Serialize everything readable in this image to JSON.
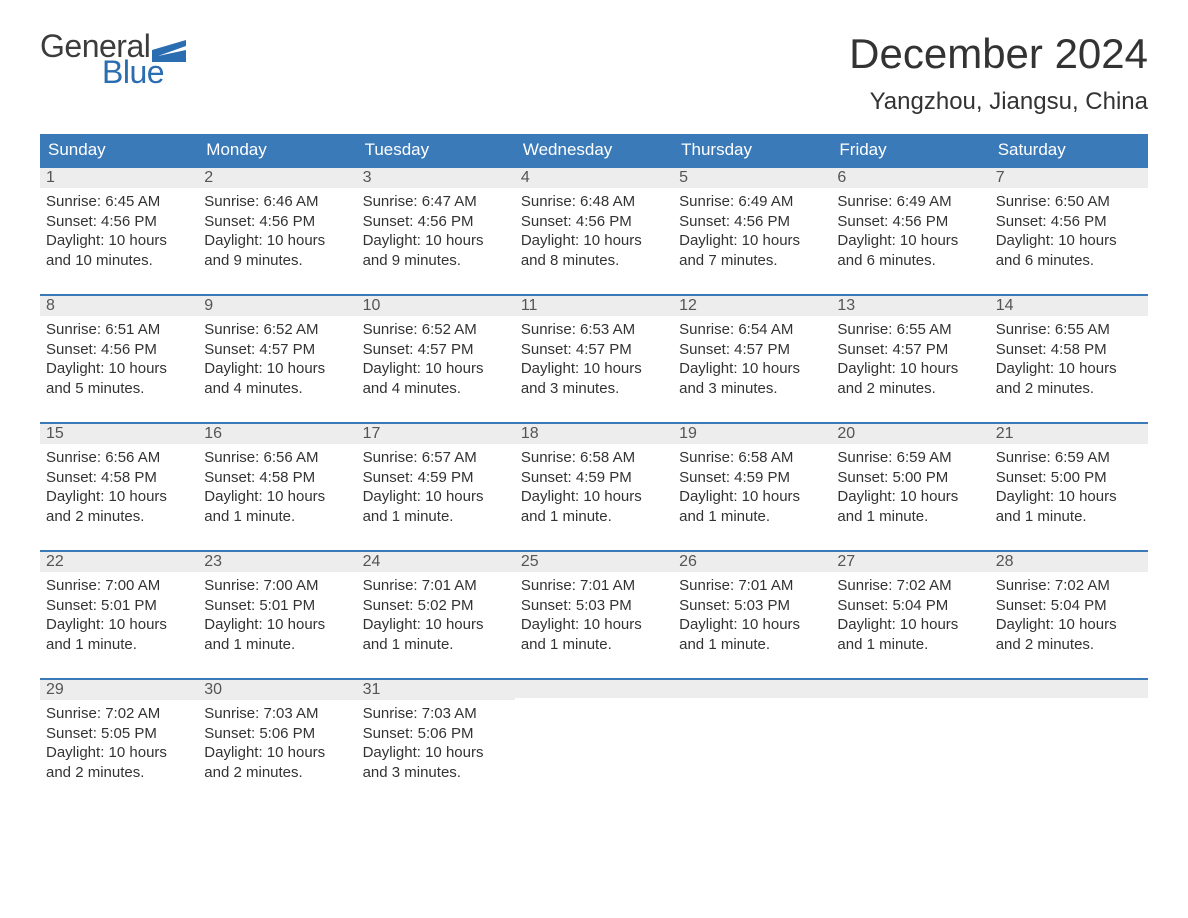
{
  "logo": {
    "word1": "General",
    "word2": "Blue",
    "flag_color": "#2a6db0",
    "text_dark": "#3c3c3c"
  },
  "header": {
    "month_title": "December 2024",
    "location": "Yangzhou, Jiangsu, China"
  },
  "styling": {
    "header_bg": "#3a7ab8",
    "header_text": "#ffffff",
    "daynum_bg": "#ededed",
    "row_divider": "#3a7ab8",
    "body_text": "#333333",
    "font_family": "Arial, Helvetica, sans-serif",
    "month_title_fontsize": 42,
    "location_fontsize": 24,
    "weekday_fontsize": 17,
    "daynum_fontsize": 16,
    "body_fontsize": 15
  },
  "weekdays": [
    "Sunday",
    "Monday",
    "Tuesday",
    "Wednesday",
    "Thursday",
    "Friday",
    "Saturday"
  ],
  "labels": {
    "sunrise": "Sunrise:",
    "sunset": "Sunset:",
    "daylight": "Daylight:"
  },
  "days": [
    {
      "n": "1",
      "sunrise": "6:45 AM",
      "sunset": "4:56 PM",
      "daylight": "10 hours and 10 minutes."
    },
    {
      "n": "2",
      "sunrise": "6:46 AM",
      "sunset": "4:56 PM",
      "daylight": "10 hours and 9 minutes."
    },
    {
      "n": "3",
      "sunrise": "6:47 AM",
      "sunset": "4:56 PM",
      "daylight": "10 hours and 9 minutes."
    },
    {
      "n": "4",
      "sunrise": "6:48 AM",
      "sunset": "4:56 PM",
      "daylight": "10 hours and 8 minutes."
    },
    {
      "n": "5",
      "sunrise": "6:49 AM",
      "sunset": "4:56 PM",
      "daylight": "10 hours and 7 minutes."
    },
    {
      "n": "6",
      "sunrise": "6:49 AM",
      "sunset": "4:56 PM",
      "daylight": "10 hours and 6 minutes."
    },
    {
      "n": "7",
      "sunrise": "6:50 AM",
      "sunset": "4:56 PM",
      "daylight": "10 hours and 6 minutes."
    },
    {
      "n": "8",
      "sunrise": "6:51 AM",
      "sunset": "4:56 PM",
      "daylight": "10 hours and 5 minutes."
    },
    {
      "n": "9",
      "sunrise": "6:52 AM",
      "sunset": "4:57 PM",
      "daylight": "10 hours and 4 minutes."
    },
    {
      "n": "10",
      "sunrise": "6:52 AM",
      "sunset": "4:57 PM",
      "daylight": "10 hours and 4 minutes."
    },
    {
      "n": "11",
      "sunrise": "6:53 AM",
      "sunset": "4:57 PM",
      "daylight": "10 hours and 3 minutes."
    },
    {
      "n": "12",
      "sunrise": "6:54 AM",
      "sunset": "4:57 PM",
      "daylight": "10 hours and 3 minutes."
    },
    {
      "n": "13",
      "sunrise": "6:55 AM",
      "sunset": "4:57 PM",
      "daylight": "10 hours and 2 minutes."
    },
    {
      "n": "14",
      "sunrise": "6:55 AM",
      "sunset": "4:58 PM",
      "daylight": "10 hours and 2 minutes."
    },
    {
      "n": "15",
      "sunrise": "6:56 AM",
      "sunset": "4:58 PM",
      "daylight": "10 hours and 2 minutes."
    },
    {
      "n": "16",
      "sunrise": "6:56 AM",
      "sunset": "4:58 PM",
      "daylight": "10 hours and 1 minute."
    },
    {
      "n": "17",
      "sunrise": "6:57 AM",
      "sunset": "4:59 PM",
      "daylight": "10 hours and 1 minute."
    },
    {
      "n": "18",
      "sunrise": "6:58 AM",
      "sunset": "4:59 PM",
      "daylight": "10 hours and 1 minute."
    },
    {
      "n": "19",
      "sunrise": "6:58 AM",
      "sunset": "4:59 PM",
      "daylight": "10 hours and 1 minute."
    },
    {
      "n": "20",
      "sunrise": "6:59 AM",
      "sunset": "5:00 PM",
      "daylight": "10 hours and 1 minute."
    },
    {
      "n": "21",
      "sunrise": "6:59 AM",
      "sunset": "5:00 PM",
      "daylight": "10 hours and 1 minute."
    },
    {
      "n": "22",
      "sunrise": "7:00 AM",
      "sunset": "5:01 PM",
      "daylight": "10 hours and 1 minute."
    },
    {
      "n": "23",
      "sunrise": "7:00 AM",
      "sunset": "5:01 PM",
      "daylight": "10 hours and 1 minute."
    },
    {
      "n": "24",
      "sunrise": "7:01 AM",
      "sunset": "5:02 PM",
      "daylight": "10 hours and 1 minute."
    },
    {
      "n": "25",
      "sunrise": "7:01 AM",
      "sunset": "5:03 PM",
      "daylight": "10 hours and 1 minute."
    },
    {
      "n": "26",
      "sunrise": "7:01 AM",
      "sunset": "5:03 PM",
      "daylight": "10 hours and 1 minute."
    },
    {
      "n": "27",
      "sunrise": "7:02 AM",
      "sunset": "5:04 PM",
      "daylight": "10 hours and 1 minute."
    },
    {
      "n": "28",
      "sunrise": "7:02 AM",
      "sunset": "5:04 PM",
      "daylight": "10 hours and 2 minutes."
    },
    {
      "n": "29",
      "sunrise": "7:02 AM",
      "sunset": "5:05 PM",
      "daylight": "10 hours and 2 minutes."
    },
    {
      "n": "30",
      "sunrise": "7:03 AM",
      "sunset": "5:06 PM",
      "daylight": "10 hours and 2 minutes."
    },
    {
      "n": "31",
      "sunrise": "7:03 AM",
      "sunset": "5:06 PM",
      "daylight": "10 hours and 3 minutes."
    }
  ],
  "grid": {
    "start_offset": 0,
    "total_cells": 35
  }
}
